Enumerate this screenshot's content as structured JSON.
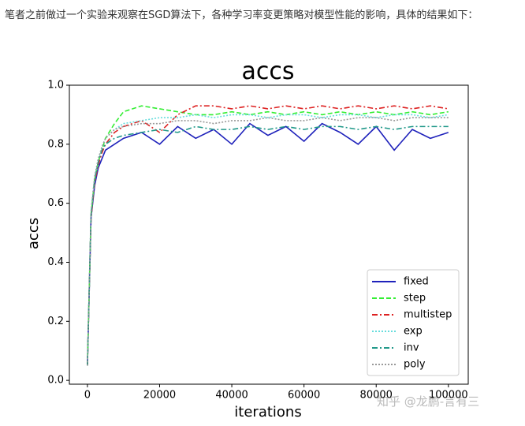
{
  "intro_text": "笔者之前做过一个实验来观察在SGD算法下，各种学习率变更策略对模型性能的影响，具体的结果如下：",
  "watermark": "知乎 @龙鹏-言有三",
  "chart_data": {
    "type": "line",
    "title": "accs",
    "xlabel": "iterations",
    "ylabel": "accs",
    "x": [
      0,
      1000,
      2000,
      3000,
      4000,
      5000,
      7500,
      10000,
      15000,
      20000,
      25000,
      30000,
      35000,
      40000,
      45000,
      50000,
      55000,
      60000,
      65000,
      70000,
      75000,
      80000,
      85000,
      90000,
      95000,
      100000
    ],
    "series": [
      {
        "name": "fixed",
        "color": "#1f22bb",
        "linestyle": "solid",
        "values": [
          0.05,
          0.55,
          0.66,
          0.72,
          0.75,
          0.78,
          0.8,
          0.82,
          0.84,
          0.8,
          0.86,
          0.82,
          0.85,
          0.8,
          0.87,
          0.83,
          0.86,
          0.81,
          0.87,
          0.84,
          0.8,
          0.86,
          0.78,
          0.85,
          0.82,
          0.84
        ]
      },
      {
        "name": "step",
        "color": "#33ee33",
        "linestyle": "dashed",
        "values": [
          0.05,
          0.56,
          0.68,
          0.74,
          0.78,
          0.82,
          0.87,
          0.91,
          0.93,
          0.92,
          0.91,
          0.9,
          0.9,
          0.91,
          0.9,
          0.91,
          0.9,
          0.91,
          0.9,
          0.91,
          0.9,
          0.91,
          0.9,
          0.91,
          0.9,
          0.91
        ]
      },
      {
        "name": "multistep",
        "color": "#dd2222",
        "linestyle": "dashdot",
        "values": [
          0.05,
          0.55,
          0.67,
          0.73,
          0.77,
          0.8,
          0.84,
          0.86,
          0.88,
          0.84,
          0.9,
          0.93,
          0.93,
          0.92,
          0.93,
          0.92,
          0.93,
          0.92,
          0.93,
          0.92,
          0.93,
          0.92,
          0.93,
          0.92,
          0.93,
          0.92
        ]
      },
      {
        "name": "exp",
        "color": "#66dddd",
        "linestyle": "dotted",
        "values": [
          0.05,
          0.57,
          0.69,
          0.75,
          0.79,
          0.82,
          0.85,
          0.87,
          0.88,
          0.89,
          0.89,
          0.9,
          0.89,
          0.9,
          0.9,
          0.89,
          0.9,
          0.9,
          0.89,
          0.9,
          0.9,
          0.89,
          0.9,
          0.9,
          0.89,
          0.9
        ]
      },
      {
        "name": "inv",
        "color": "#22998a",
        "linestyle": "dashdot",
        "values": [
          0.05,
          0.56,
          0.68,
          0.74,
          0.78,
          0.8,
          0.82,
          0.83,
          0.84,
          0.85,
          0.84,
          0.86,
          0.85,
          0.85,
          0.86,
          0.85,
          0.86,
          0.85,
          0.86,
          0.86,
          0.85,
          0.86,
          0.85,
          0.86,
          0.86,
          0.86
        ]
      },
      {
        "name": "poly",
        "color": "#999999",
        "linestyle": "dotted",
        "values": [
          0.05,
          0.57,
          0.69,
          0.75,
          0.79,
          0.82,
          0.85,
          0.86,
          0.87,
          0.87,
          0.88,
          0.88,
          0.87,
          0.88,
          0.88,
          0.89,
          0.88,
          0.88,
          0.89,
          0.88,
          0.89,
          0.89,
          0.88,
          0.89,
          0.89,
          0.89
        ]
      }
    ],
    "xlim": [
      -5000,
      105500
    ],
    "xticks": [
      0,
      20000,
      40000,
      60000,
      80000,
      100000
    ],
    "ylim": [
      -0.013,
      1.0
    ],
    "yticks": [
      {
        "value": 0,
        "label": "0.0"
      },
      0.2,
      0.4,
      0.6,
      0.8,
      {
        "value": 1,
        "label": "1.0"
      }
    ],
    "legend": "lower right"
  }
}
